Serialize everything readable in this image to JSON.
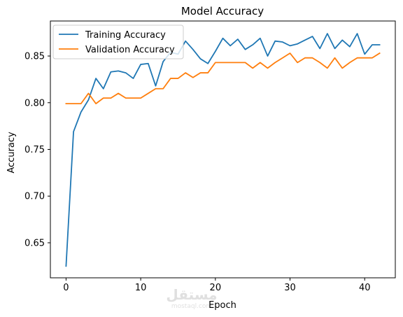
{
  "chart_data": {
    "type": "line",
    "title": "Model Accuracy",
    "xlabel": "Epoch",
    "ylabel": "Accuracy",
    "xlim": [
      -2.1,
      44.1
    ],
    "ylim": [
      0.6125,
      0.8875
    ],
    "xticks": [
      0,
      10,
      20,
      30,
      40
    ],
    "yticks": [
      0.65,
      0.7,
      0.75,
      0.8,
      0.85
    ],
    "ytick_labels": [
      "0.65",
      "0.70",
      "0.75",
      "0.80",
      "0.85"
    ],
    "legend_position": "top-left",
    "grid": false,
    "series": [
      {
        "name": "Training Accuracy",
        "color": "#1f77b4",
        "x": [
          0,
          1,
          2,
          3,
          4,
          5,
          6,
          7,
          8,
          9,
          10,
          11,
          12,
          13,
          14,
          15,
          16,
          17,
          18,
          19,
          20,
          21,
          22,
          23,
          24,
          25,
          26,
          27,
          28,
          29,
          30,
          31,
          32,
          33,
          34,
          35,
          36,
          37,
          38,
          39,
          40,
          41,
          42
        ],
        "values": [
          0.625,
          0.769,
          0.79,
          0.803,
          0.826,
          0.815,
          0.833,
          0.834,
          0.832,
          0.826,
          0.841,
          0.842,
          0.818,
          0.844,
          0.854,
          0.852,
          0.866,
          0.857,
          0.847,
          0.842,
          0.855,
          0.869,
          0.861,
          0.868,
          0.857,
          0.862,
          0.869,
          0.85,
          0.866,
          0.865,
          0.861,
          0.863,
          0.867,
          0.871,
          0.858,
          0.874,
          0.858,
          0.867,
          0.86,
          0.874,
          0.852,
          0.862,
          0.862
        ]
      },
      {
        "name": "Validation Accuracy",
        "color": "#ff7f0e",
        "x": [
          0,
          1,
          2,
          3,
          4,
          5,
          6,
          7,
          8,
          9,
          10,
          11,
          12,
          13,
          14,
          15,
          16,
          17,
          18,
          19,
          20,
          21,
          22,
          23,
          24,
          25,
          26,
          27,
          28,
          29,
          30,
          31,
          32,
          33,
          34,
          35,
          36,
          37,
          38,
          39,
          40,
          41,
          42
        ],
        "values": [
          0.799,
          0.799,
          0.799,
          0.81,
          0.799,
          0.805,
          0.805,
          0.81,
          0.805,
          0.805,
          0.805,
          0.81,
          0.815,
          0.815,
          0.826,
          0.826,
          0.832,
          0.827,
          0.832,
          0.832,
          0.843,
          0.843,
          0.843,
          0.843,
          0.843,
          0.837,
          0.843,
          0.837,
          0.843,
          0.848,
          0.853,
          0.843,
          0.848,
          0.848,
          0.843,
          0.837,
          0.848,
          0.837,
          0.843,
          0.848,
          0.848,
          0.848,
          0.853
        ]
      }
    ]
  },
  "watermark": {
    "text": "مستقل",
    "subtext": "mostaql.com"
  }
}
